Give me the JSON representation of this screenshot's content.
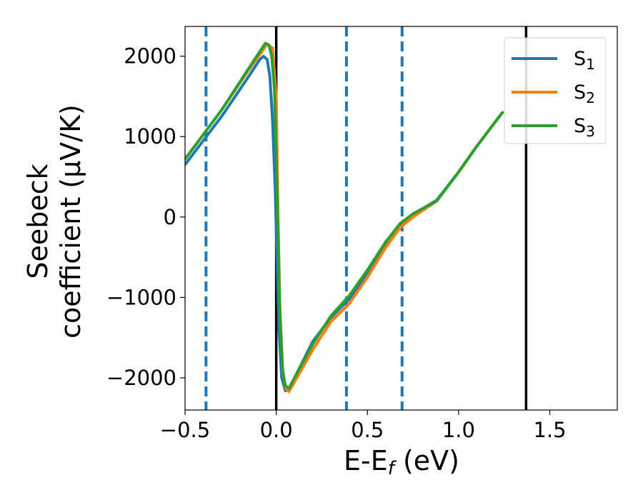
{
  "chart_data": {
    "type": "line",
    "title": "",
    "xlabel": "E-E",
    "xlabel_sub": "f",
    "xlabel_unit": " (eV)",
    "ylabel_line1": "Seebeck",
    "ylabel_line2": "coefficient  (μV/K)",
    "xlim": [
      -0.5,
      1.87
    ],
    "ylim": [
      -2400,
      2370
    ],
    "x_ticks": [
      -0.5,
      0.0,
      0.5,
      1.0,
      1.5
    ],
    "x_tick_labels": [
      "−0.5",
      "0.0",
      "0.5",
      "1.0",
      "1.5"
    ],
    "y_ticks": [
      -2000,
      -1000,
      0,
      1000,
      2000
    ],
    "y_tick_labels": [
      "−2000",
      "−1000",
      "0",
      "1000",
      "2000"
    ],
    "grid": false,
    "legend_position": "top-right",
    "vertical_lines": [
      {
        "x": -0.385,
        "style": "dashed",
        "color": "#1f77b4"
      },
      {
        "x": 0.0,
        "style": "solid",
        "color": "#000000"
      },
      {
        "x": 0.385,
        "style": "dashed",
        "color": "#1f77b4"
      },
      {
        "x": 0.69,
        "style": "dashed",
        "color": "#1f77b4"
      },
      {
        "x": 1.37,
        "style": "solid",
        "color": "#000000"
      }
    ],
    "series": [
      {
        "name": "S",
        "name_sub": "1",
        "color": "#1f77b4",
        "x": [
          -0.5,
          -0.3,
          -0.15,
          -0.09,
          -0.07,
          -0.05,
          -0.035,
          -0.02,
          -0.005,
          0.005,
          0.015,
          0.03,
          0.05,
          0.07,
          0.1,
          0.2,
          0.3,
          0.4,
          0.5,
          0.6,
          0.68,
          0.75,
          0.88,
          1.0,
          1.1,
          1.24
        ],
        "y": [
          650,
          1250,
          1750,
          1960,
          2000,
          1960,
          1750,
          1200,
          300,
          -600,
          -1400,
          -2000,
          -2160,
          -2140,
          -2000,
          -1550,
          -1250,
          -1020,
          -700,
          -350,
          -100,
          30,
          210,
          560,
          880,
          1300
        ]
      },
      {
        "name": "S",
        "name_sub": "2",
        "color": "#ff7f0e",
        "x": [
          -0.5,
          -0.3,
          -0.15,
          -0.05,
          -0.02,
          0.0,
          0.01,
          0.02,
          0.035,
          0.05,
          0.07,
          0.1,
          0.2,
          0.3,
          0.4,
          0.5,
          0.6,
          0.68,
          0.75,
          0.88,
          1.0,
          1.1,
          1.24
        ],
        "y": [
          720,
          1330,
          1830,
          2150,
          2100,
          1500,
          0,
          -1100,
          -1900,
          -2120,
          -2170,
          -2050,
          -1650,
          -1300,
          -1080,
          -750,
          -380,
          -130,
          0,
          200,
          560,
          880,
          1300
        ]
      },
      {
        "name": "S",
        "name_sub": "3",
        "color": "#2ca02c",
        "x": [
          -0.5,
          -0.3,
          -0.15,
          -0.06,
          -0.04,
          -0.025,
          -0.01,
          0.0,
          0.01,
          0.02,
          0.035,
          0.05,
          0.07,
          0.1,
          0.2,
          0.3,
          0.4,
          0.5,
          0.6,
          0.68,
          0.75,
          0.88,
          1.0,
          1.1,
          1.24
        ],
        "y": [
          720,
          1330,
          1850,
          2160,
          2140,
          2000,
          1600,
          800,
          -200,
          -1200,
          -1900,
          -2100,
          -2130,
          -2000,
          -1580,
          -1230,
          -980,
          -660,
          -310,
          -80,
          40,
          200,
          560,
          880,
          1300
        ]
      }
    ]
  }
}
